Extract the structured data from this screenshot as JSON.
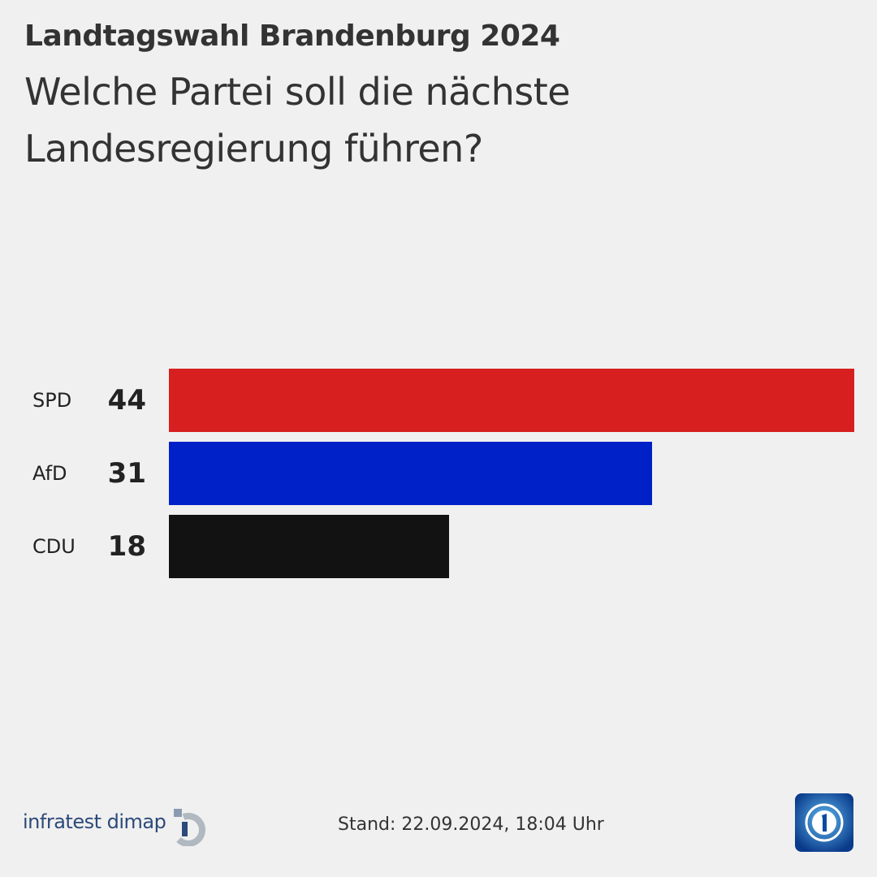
{
  "chart_data": {
    "type": "bar",
    "orientation": "horizontal",
    "title": "Landtagswahl Brandenburg 2024",
    "subtitle": "Welche Partei soll die nächste Landesregierung führen?",
    "categories": [
      "SPD",
      "AfD",
      "CDU"
    ],
    "values": [
      44,
      31,
      18
    ],
    "colors": [
      "#d71f1f",
      "#0021c8",
      "#121212"
    ],
    "source": "infratest dimap",
    "footnote": "Stand:  22.09.2024, 18:04 Uhr"
  }
}
